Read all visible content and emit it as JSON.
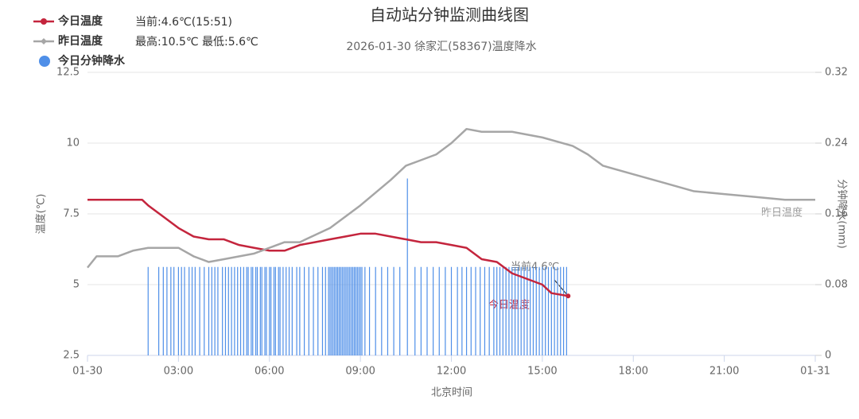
{
  "chart_data": {
    "type": "line",
    "title": "自动站分钟监测曲线图",
    "subtitle": "2026-01-30 徐家汇(58367)温度降水",
    "x_label": "北京时间",
    "y_label": "温度(℃)",
    "y2_label": "分钟降水(mm)",
    "xlim": [
      0,
      24
    ],
    "xticks": [
      {
        "value": 0,
        "label": "01-30"
      },
      {
        "value": 3,
        "label": "03:00"
      },
      {
        "value": 6,
        "label": "06:00"
      },
      {
        "value": 9,
        "label": "09:00"
      },
      {
        "value": 12,
        "label": "12:00"
      },
      {
        "value": 15,
        "label": "15:00"
      },
      {
        "value": 18,
        "label": "18:00"
      },
      {
        "value": 21,
        "label": "21:00"
      },
      {
        "value": 24,
        "label": "01-31"
      }
    ],
    "ylim": [
      2.5,
      12.5
    ],
    "yticks": [
      2.5,
      5,
      7.5,
      10,
      12.5
    ],
    "y2lim": [
      0,
      0.32
    ],
    "y2ticks": [
      0,
      0.08,
      0.16,
      0.24,
      0.32
    ],
    "grid": true,
    "legend": "top-left",
    "annotations": [
      "当前:4.6℃(15:51)",
      "最高:10.5℃ 最低:5.6℃",
      "当前4.6℃",
      "今日温度",
      "昨日温度"
    ],
    "series": [
      {
        "name": "今日温度",
        "type": "line",
        "color": "#c4253d",
        "x": [
          0,
          1.8,
          2.0,
          2.5,
          3.0,
          3.5,
          4.0,
          4.5,
          5.0,
          5.5,
          6.0,
          6.5,
          7.0,
          7.5,
          8.0,
          8.5,
          9.0,
          9.5,
          10.0,
          10.5,
          11.0,
          11.5,
          12.0,
          12.5,
          13.0,
          13.5,
          14.0,
          14.5,
          15.0,
          15.3,
          15.85
        ],
        "values": [
          8.0,
          8.0,
          7.8,
          7.4,
          7.0,
          6.7,
          6.6,
          6.6,
          6.4,
          6.3,
          6.2,
          6.2,
          6.4,
          6.5,
          6.6,
          6.7,
          6.8,
          6.8,
          6.7,
          6.6,
          6.5,
          6.5,
          6.4,
          6.3,
          5.9,
          5.8,
          5.4,
          5.2,
          5.0,
          4.7,
          4.6
        ]
      },
      {
        "name": "昨日温度",
        "type": "line",
        "color": "#a6a6a6",
        "x": [
          0,
          0.3,
          1.0,
          1.5,
          2.0,
          3.0,
          3.5,
          4.0,
          4.5,
          5.5,
          6.0,
          6.5,
          7.0,
          8.0,
          9.0,
          10.0,
          10.5,
          11.0,
          11.5,
          12.0,
          12.5,
          13.0,
          14.0,
          15.0,
          16.0,
          16.5,
          17.0,
          18.0,
          19.0,
          20.0,
          21.0,
          22.0,
          23.0,
          24.0
        ],
        "values": [
          5.6,
          6.0,
          6.0,
          6.2,
          6.3,
          6.3,
          6.0,
          5.8,
          5.9,
          6.1,
          6.3,
          6.5,
          6.5,
          7.0,
          7.8,
          8.7,
          9.2,
          9.4,
          9.6,
          10.0,
          10.5,
          10.4,
          10.4,
          10.2,
          9.9,
          9.6,
          9.2,
          8.9,
          8.6,
          8.3,
          8.2,
          8.1,
          8.0,
          8.0
        ]
      },
      {
        "name": "今日分钟降水",
        "type": "bar",
        "axis": "y2",
        "color": "#4f8fe8",
        "x": [
          2.0,
          2.35,
          2.5,
          2.62,
          2.75,
          2.85,
          3.0,
          3.1,
          3.2,
          3.35,
          3.45,
          3.55,
          3.7,
          3.85,
          4.0,
          4.1,
          4.2,
          4.3,
          4.45,
          4.55,
          4.65,
          4.75,
          4.85,
          4.95,
          5.05,
          5.15,
          5.25,
          5.3,
          5.4,
          5.45,
          5.55,
          5.6,
          5.7,
          5.75,
          5.85,
          5.9,
          6.0,
          6.05,
          6.15,
          6.2,
          6.3,
          6.35,
          6.45,
          6.55,
          6.65,
          6.75,
          6.9,
          7.0,
          7.15,
          7.3,
          7.45,
          7.6,
          7.75,
          7.85,
          7.95,
          8.0,
          8.05,
          8.1,
          8.15,
          8.2,
          8.25,
          8.3,
          8.35,
          8.4,
          8.45,
          8.5,
          8.55,
          8.6,
          8.65,
          8.7,
          8.75,
          8.8,
          8.85,
          8.9,
          8.95,
          9.0,
          9.05,
          9.15,
          9.3,
          9.5,
          9.7,
          9.9,
          10.1,
          10.3,
          10.55,
          10.8,
          11.0,
          11.2,
          11.4,
          11.6,
          11.8,
          12.0,
          12.2,
          12.35,
          12.5,
          12.65,
          12.8,
          12.95,
          13.1,
          13.25,
          13.4,
          13.5,
          13.6,
          13.7,
          13.8,
          13.9,
          14.0,
          14.1,
          14.2,
          14.3,
          14.4,
          14.5,
          14.6,
          14.7,
          14.8,
          14.9,
          15.0,
          15.1,
          15.2,
          15.3,
          15.4,
          15.5,
          15.6,
          15.7,
          15.8
        ],
        "values": [
          0.1,
          0.1,
          0.1,
          0.1,
          0.1,
          0.1,
          0.1,
          0.1,
          0.1,
          0.1,
          0.1,
          0.1,
          0.1,
          0.1,
          0.1,
          0.1,
          0.1,
          0.1,
          0.1,
          0.1,
          0.1,
          0.1,
          0.1,
          0.1,
          0.1,
          0.1,
          0.1,
          0.1,
          0.1,
          0.1,
          0.1,
          0.1,
          0.1,
          0.1,
          0.1,
          0.1,
          0.1,
          0.1,
          0.1,
          0.1,
          0.1,
          0.1,
          0.1,
          0.1,
          0.1,
          0.1,
          0.1,
          0.1,
          0.1,
          0.1,
          0.1,
          0.1,
          0.1,
          0.1,
          0.1,
          0.1,
          0.1,
          0.1,
          0.1,
          0.1,
          0.1,
          0.1,
          0.1,
          0.1,
          0.1,
          0.1,
          0.1,
          0.1,
          0.1,
          0.1,
          0.1,
          0.1,
          0.1,
          0.1,
          0.1,
          0.1,
          0.1,
          0.1,
          0.1,
          0.1,
          0.1,
          0.1,
          0.1,
          0.1,
          0.2,
          0.1,
          0.1,
          0.1,
          0.1,
          0.1,
          0.1,
          0.1,
          0.1,
          0.1,
          0.1,
          0.1,
          0.1,
          0.1,
          0.1,
          0.1,
          0.1,
          0.1,
          0.1,
          0.1,
          0.1,
          0.1,
          0.1,
          0.1,
          0.1,
          0.1,
          0.1,
          0.1,
          0.1,
          0.1,
          0.1,
          0.1,
          0.1,
          0.1,
          0.1,
          0.1,
          0.1,
          0.1,
          0.1,
          0.1,
          0.1
        ]
      }
    ]
  }
}
